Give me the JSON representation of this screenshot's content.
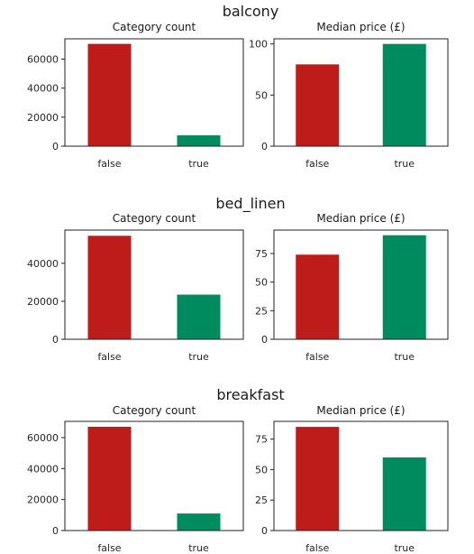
{
  "chart_data": [
    {
      "group": "balcony",
      "panels": [
        {
          "type": "bar",
          "title": "Category count",
          "categories": [
            "false",
            "true"
          ],
          "values": [
            70500,
            7500
          ],
          "ylim": [
            0,
            74000
          ],
          "yticks": [
            0,
            20000,
            40000,
            60000
          ],
          "colors": [
            "#be1b1b",
            "#008b5e"
          ],
          "grid": false
        },
        {
          "type": "bar",
          "title": "Median price (£)",
          "categories": [
            "false",
            "true"
          ],
          "values": [
            80,
            100
          ],
          "ylim": [
            0,
            105
          ],
          "yticks": [
            0,
            50,
            100
          ],
          "colors": [
            "#be1b1b",
            "#008b5e"
          ],
          "grid": false
        }
      ]
    },
    {
      "group": "bed_linen",
      "panels": [
        {
          "type": "bar",
          "title": "Category count",
          "categories": [
            "false",
            "true"
          ],
          "values": [
            54500,
            23500
          ],
          "ylim": [
            0,
            57500
          ],
          "yticks": [
            0,
            20000,
            40000
          ],
          "colors": [
            "#be1b1b",
            "#008b5e"
          ],
          "grid": false
        },
        {
          "type": "bar",
          "title": "Median price (£)",
          "categories": [
            "false",
            "true"
          ],
          "values": [
            74,
            91
          ],
          "ylim": [
            0,
            95.5
          ],
          "yticks": [
            0,
            25,
            50,
            75
          ],
          "colors": [
            "#be1b1b",
            "#008b5e"
          ],
          "grid": false
        }
      ]
    },
    {
      "group": "breakfast",
      "panels": [
        {
          "type": "bar",
          "title": "Category count",
          "categories": [
            "false",
            "true"
          ],
          "values": [
            67000,
            11000
          ],
          "ylim": [
            0,
            70500
          ],
          "yticks": [
            0,
            20000,
            40000,
            60000
          ],
          "colors": [
            "#be1b1b",
            "#008b5e"
          ],
          "grid": false
        },
        {
          "type": "bar",
          "title": "Median price (£)",
          "categories": [
            "false",
            "true"
          ],
          "values": [
            85,
            60
          ],
          "ylim": [
            0,
            89.5
          ],
          "yticks": [
            0,
            25,
            50,
            75
          ],
          "colors": [
            "#be1b1b",
            "#008b5e"
          ],
          "grid": false
        }
      ]
    }
  ]
}
